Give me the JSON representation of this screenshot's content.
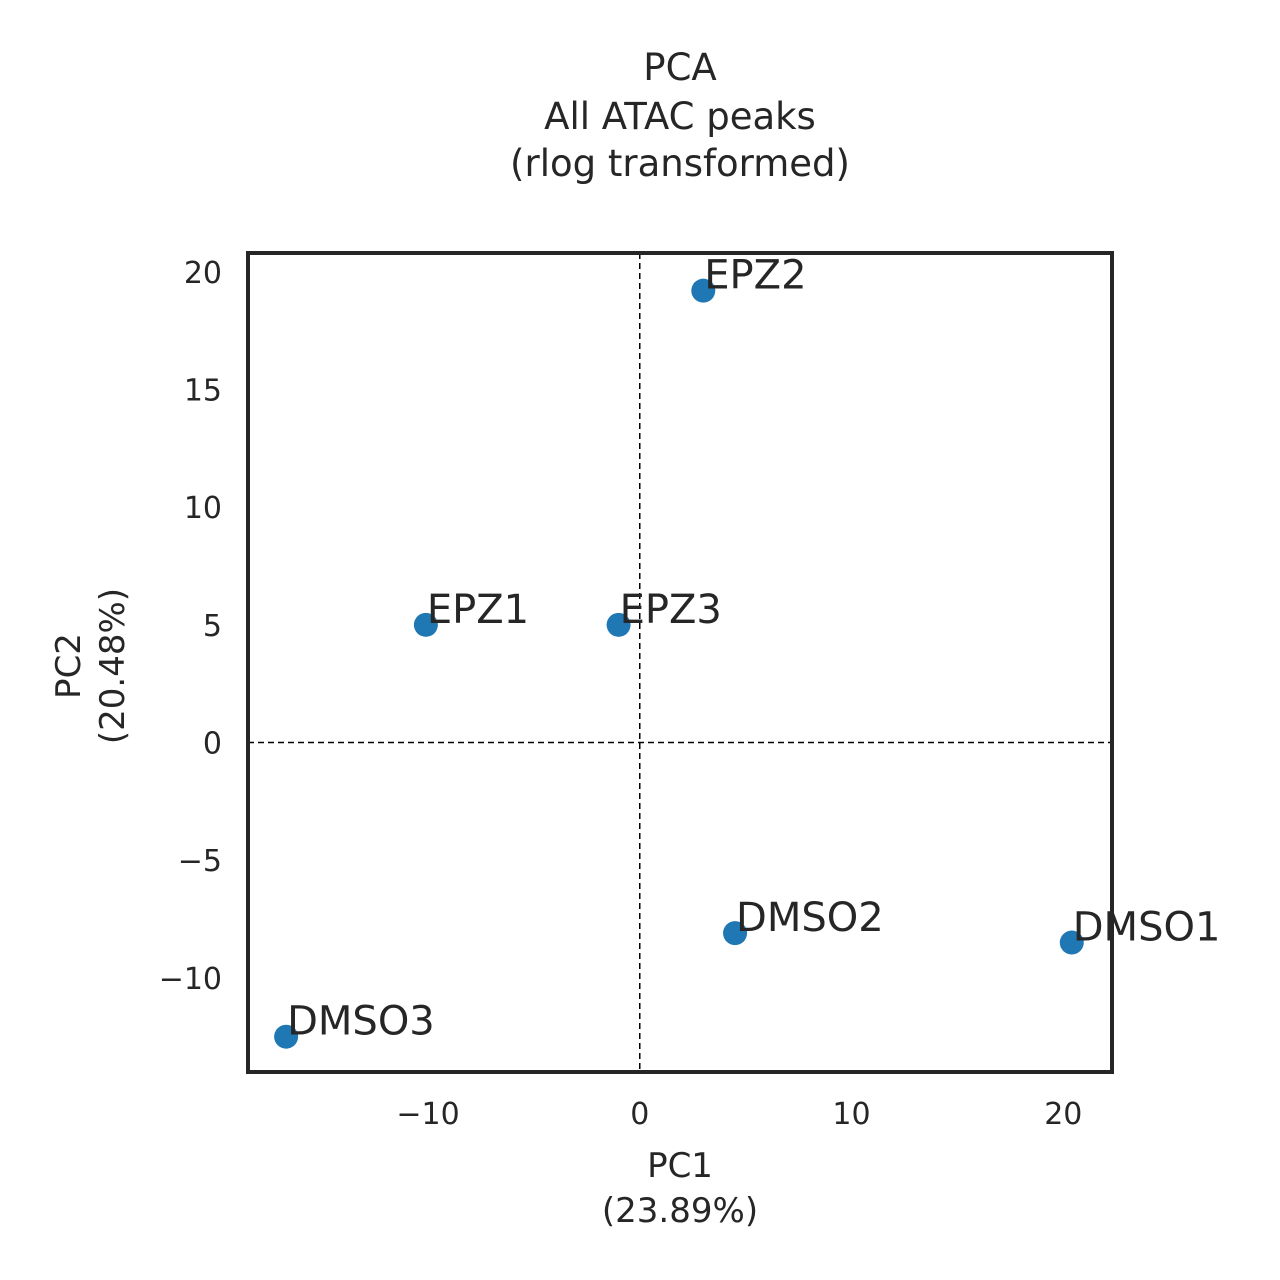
{
  "chart_data": {
    "type": "scatter",
    "title": [
      "PCA",
      "All ATAC peaks",
      "(rlog transformed)"
    ],
    "xlabel": [
      "PC1",
      "(23.89%)"
    ],
    "ylabel": [
      "PC2",
      "(20.48%)"
    ],
    "xlim": [
      -18.5,
      22.3
    ],
    "ylim": [
      -14.0,
      20.8
    ],
    "xticks": [
      -10,
      0,
      10,
      20
    ],
    "xtick_labels": [
      "−10",
      "0",
      "10",
      "20"
    ],
    "yticks": [
      -10,
      -5,
      0,
      5,
      10,
      15,
      20
    ],
    "ytick_labels": [
      "−10",
      "−5",
      "0",
      "5",
      "10",
      "15",
      "20"
    ],
    "grid": false,
    "zero_lines": true,
    "marker_color": "#1f77b4",
    "points": [
      {
        "label": "EPZ2",
        "x": 3.0,
        "y": 19.2
      },
      {
        "label": "EPZ1",
        "x": -10.1,
        "y": 5.0
      },
      {
        "label": "EPZ3",
        "x": -1.0,
        "y": 5.0
      },
      {
        "label": "DMSO2",
        "x": 4.5,
        "y": -8.1
      },
      {
        "label": "DMSO1",
        "x": 20.4,
        "y": -8.5
      },
      {
        "label": "DMSO3",
        "x": -16.7,
        "y": -12.5
      }
    ]
  }
}
